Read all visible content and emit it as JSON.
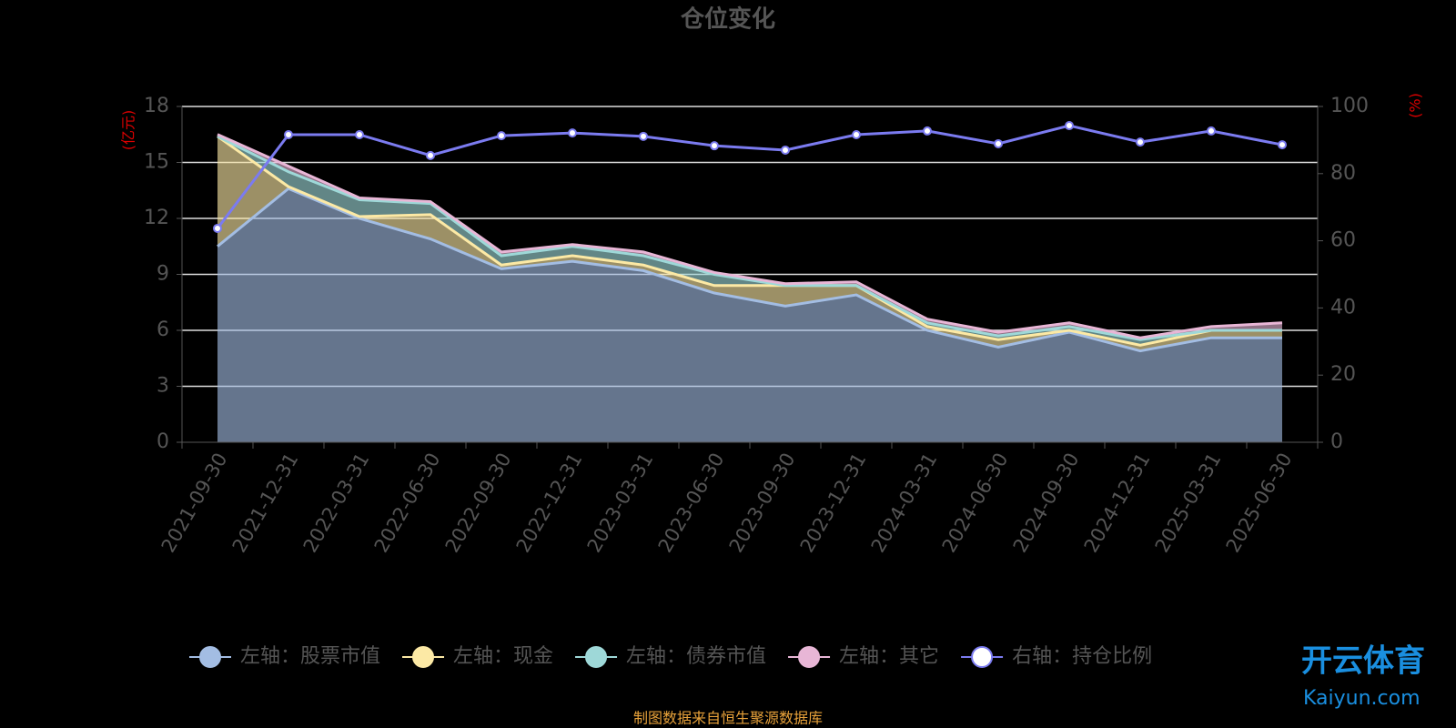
{
  "chart_data": {
    "type": "area",
    "title": "仓位变化",
    "y_label": "(亿元)",
    "y2_label": "(%)",
    "source": "制图数据来自恒生聚源数据库",
    "categories": [
      "2021-09-30",
      "2021-12-31",
      "2022-03-31",
      "2022-06-30",
      "2022-09-30",
      "2022-12-31",
      "2023-03-31",
      "2023-06-30",
      "2023-09-30",
      "2023-12-31",
      "2024-03-31",
      "2024-06-30",
      "2024-09-30",
      "2024-12-31",
      "2025-03-31",
      "2025-06-30"
    ],
    "series": [
      {
        "name": "左轴：股票市值",
        "color": "#a3bde3",
        "values": [
          10.5,
          13.6,
          12.0,
          10.9,
          9.3,
          9.7,
          9.2,
          8.0,
          7.3,
          7.9,
          6.0,
          5.1,
          5.9,
          4.9,
          5.6,
          5.6
        ]
      },
      {
        "name": "左轴：现金",
        "color": "#fce9a5",
        "values": [
          5.9,
          0.1,
          0.1,
          1.3,
          0.2,
          0.3,
          0.3,
          0.4,
          1.1,
          0.5,
          0.2,
          0.4,
          0.1,
          0.3,
          0.4,
          0.4
        ]
      },
      {
        "name": "左轴：债券市值",
        "color": "#9ed8d8",
        "values": [
          0,
          0.8,
          0.9,
          0.6,
          0.5,
          0.5,
          0.5,
          0.6,
          0,
          0,
          0.2,
          0.2,
          0.2,
          0.3,
          0,
          0
        ]
      },
      {
        "name": "左轴：其它",
        "color": "#e8b6d6",
        "values": [
          0.1,
          0.3,
          0.1,
          0.1,
          0.2,
          0.1,
          0.2,
          0.1,
          0.1,
          0.2,
          0.2,
          0.2,
          0.2,
          0.1,
          0.2,
          0.4
        ]
      },
      {
        "name": "右轴：持仓比例",
        "color": "#7b7bf0",
        "axis": "y2",
        "values": [
          63.7,
          91.6,
          91.6,
          85.4,
          91.3,
          92.1,
          91.1,
          88.3,
          87.0,
          91.6,
          92.7,
          88.9,
          94.3,
          89.4,
          92.7,
          88.6
        ]
      }
    ],
    "ylim": [
      0,
      18
    ],
    "yticks": [
      0,
      3,
      6,
      9,
      12,
      15,
      18
    ],
    "y2lim": [
      0,
      100
    ],
    "y2ticks": [
      0,
      20,
      40,
      60,
      80,
      100
    ],
    "grid": true
  },
  "watermark": {
    "title": "开云体育",
    "subtitle": "Kaiyun.com"
  }
}
